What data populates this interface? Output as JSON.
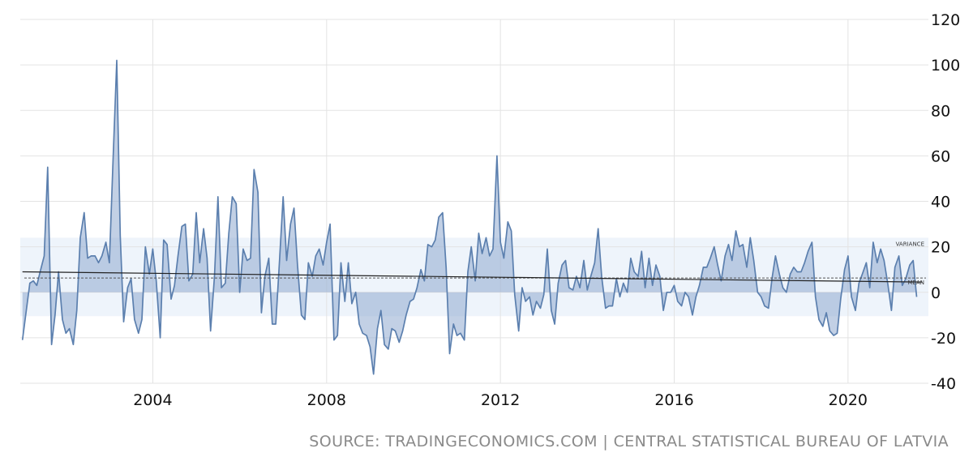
{
  "source_text": "SOURCE: TRADINGECONOMICS.COM | CENTRAL STATISTICAL BUREAU OF LATVIA",
  "colors": {
    "line": "#5b7fae",
    "area_fill": "#8fa9cf",
    "variance_band": "#eef4fb",
    "grid": "#e3e3e3",
    "trend": "#222222",
    "mean": "#555555"
  },
  "chart_data": {
    "type": "area",
    "title": "",
    "xlabel": "",
    "ylabel": "",
    "xlim": [
      2000.95,
      2021.85
    ],
    "ylim": [
      -40,
      120
    ],
    "y_ticks": [
      -40,
      -20,
      0,
      20,
      40,
      60,
      80,
      100,
      120
    ],
    "x_ticks": [
      2004,
      2008,
      2012,
      2016,
      2020
    ],
    "grid": true,
    "y_axis_position": "right",
    "variance_band": {
      "label": "VARIANCE",
      "from": -10.5,
      "to": 24
    },
    "mean_line": {
      "label": "MEAN",
      "value": 6.3
    },
    "trend_line": {
      "start": [
        2001.0,
        9.0
      ],
      "end": [
        2021.7,
        4.5
      ]
    },
    "series": [
      {
        "points": [
          [
            2001.0,
            -21
          ],
          [
            2001.17,
            4
          ],
          [
            2001.25,
            5
          ],
          [
            2001.33,
            3
          ],
          [
            2001.42,
            10
          ],
          [
            2001.5,
            16
          ],
          [
            2001.58,
            55
          ],
          [
            2001.67,
            -23
          ],
          [
            2001.75,
            -10
          ],
          [
            2001.83,
            9
          ],
          [
            2001.92,
            -12
          ],
          [
            2002.0,
            -18
          ],
          [
            2002.08,
            -16
          ],
          [
            2002.17,
            -23
          ],
          [
            2002.25,
            -8
          ],
          [
            2002.33,
            24
          ],
          [
            2002.42,
            35
          ],
          [
            2002.5,
            15
          ],
          [
            2002.58,
            16
          ],
          [
            2002.67,
            16
          ],
          [
            2002.75,
            13
          ],
          [
            2002.83,
            16
          ],
          [
            2002.92,
            22
          ],
          [
            2003.0,
            13
          ],
          [
            2003.08,
            55
          ],
          [
            2003.17,
            102
          ],
          [
            2003.25,
            25
          ],
          [
            2003.33,
            -13
          ],
          [
            2003.42,
            2
          ],
          [
            2003.5,
            6
          ],
          [
            2003.58,
            -12
          ],
          [
            2003.67,
            -18
          ],
          [
            2003.75,
            -12
          ],
          [
            2003.83,
            20
          ],
          [
            2003.92,
            8
          ],
          [
            2004.0,
            19
          ],
          [
            2004.08,
            5
          ],
          [
            2004.17,
            -20
          ],
          [
            2004.25,
            23
          ],
          [
            2004.33,
            21
          ],
          [
            2004.42,
            -3
          ],
          [
            2004.5,
            3
          ],
          [
            2004.58,
            16
          ],
          [
            2004.67,
            29
          ],
          [
            2004.75,
            30
          ],
          [
            2004.83,
            5
          ],
          [
            2004.92,
            8
          ],
          [
            2005.0,
            35
          ],
          [
            2005.08,
            13
          ],
          [
            2005.17,
            28
          ],
          [
            2005.25,
            15
          ],
          [
            2005.33,
            -17
          ],
          [
            2005.42,
            7
          ],
          [
            2005.5,
            42
          ],
          [
            2005.58,
            2
          ],
          [
            2005.67,
            4
          ],
          [
            2005.75,
            26
          ],
          [
            2005.83,
            42
          ],
          [
            2005.92,
            39
          ],
          [
            2006.0,
            0
          ],
          [
            2006.08,
            19
          ],
          [
            2006.17,
            14
          ],
          [
            2006.25,
            15
          ],
          [
            2006.33,
            54
          ],
          [
            2006.42,
            44
          ],
          [
            2006.5,
            -9
          ],
          [
            2006.58,
            7
          ],
          [
            2006.67,
            15
          ],
          [
            2006.75,
            -14
          ],
          [
            2006.83,
            -14
          ],
          [
            2006.92,
            15
          ],
          [
            2007.0,
            42
          ],
          [
            2007.08,
            14
          ],
          [
            2007.17,
            30
          ],
          [
            2007.25,
            37
          ],
          [
            2007.33,
            12
          ],
          [
            2007.42,
            -10
          ],
          [
            2007.5,
            -12
          ],
          [
            2007.58,
            13
          ],
          [
            2007.67,
            7
          ],
          [
            2007.75,
            16
          ],
          [
            2007.83,
            19
          ],
          [
            2007.92,
            12
          ],
          [
            2008.0,
            22
          ],
          [
            2008.08,
            30
          ],
          [
            2008.17,
            -21
          ],
          [
            2008.25,
            -19
          ],
          [
            2008.33,
            13
          ],
          [
            2008.42,
            -4
          ],
          [
            2008.5,
            13
          ],
          [
            2008.58,
            -5
          ],
          [
            2008.67,
            0
          ],
          [
            2008.75,
            -14
          ],
          [
            2008.83,
            -18
          ],
          [
            2008.92,
            -19
          ],
          [
            2009.0,
            -24
          ],
          [
            2009.08,
            -36
          ],
          [
            2009.17,
            -16
          ],
          [
            2009.25,
            -8
          ],
          [
            2009.33,
            -23
          ],
          [
            2009.42,
            -25
          ],
          [
            2009.5,
            -16
          ],
          [
            2009.58,
            -17
          ],
          [
            2009.67,
            -22
          ],
          [
            2009.75,
            -17
          ],
          [
            2009.83,
            -10
          ],
          [
            2009.92,
            -4
          ],
          [
            2010.0,
            -3
          ],
          [
            2010.08,
            2
          ],
          [
            2010.17,
            10
          ],
          [
            2010.25,
            5
          ],
          [
            2010.33,
            21
          ],
          [
            2010.42,
            20
          ],
          [
            2010.5,
            23
          ],
          [
            2010.58,
            33
          ],
          [
            2010.67,
            35
          ],
          [
            2010.75,
            11
          ],
          [
            2010.83,
            -27
          ],
          [
            2010.92,
            -14
          ],
          [
            2011.0,
            -19
          ],
          [
            2011.08,
            -18
          ],
          [
            2011.17,
            -21
          ],
          [
            2011.25,
            9
          ],
          [
            2011.33,
            20
          ],
          [
            2011.42,
            5
          ],
          [
            2011.5,
            26
          ],
          [
            2011.58,
            17
          ],
          [
            2011.67,
            24
          ],
          [
            2011.75,
            16
          ],
          [
            2011.83,
            19
          ],
          [
            2011.92,
            60
          ],
          [
            2012.0,
            22
          ],
          [
            2012.08,
            15
          ],
          [
            2012.17,
            31
          ],
          [
            2012.25,
            27
          ],
          [
            2012.33,
            -1
          ],
          [
            2012.42,
            -17
          ],
          [
            2012.5,
            2
          ],
          [
            2012.58,
            -4
          ],
          [
            2012.67,
            -2
          ],
          [
            2012.75,
            -10
          ],
          [
            2012.83,
            -4
          ],
          [
            2012.92,
            -7
          ],
          [
            2013.0,
            -1
          ],
          [
            2013.08,
            19
          ],
          [
            2013.17,
            -8
          ],
          [
            2013.25,
            -14
          ],
          [
            2013.33,
            4
          ],
          [
            2013.42,
            12
          ],
          [
            2013.5,
            14
          ],
          [
            2013.58,
            2
          ],
          [
            2013.67,
            1
          ],
          [
            2013.75,
            7
          ],
          [
            2013.83,
            2
          ],
          [
            2013.92,
            14
          ],
          [
            2014.0,
            1
          ],
          [
            2014.08,
            7
          ],
          [
            2014.17,
            13
          ],
          [
            2014.25,
            28
          ],
          [
            2014.33,
            7
          ],
          [
            2014.42,
            -7
          ],
          [
            2014.5,
            -6
          ],
          [
            2014.58,
            -6
          ],
          [
            2014.67,
            6
          ],
          [
            2014.75,
            -2
          ],
          [
            2014.83,
            4
          ],
          [
            2014.92,
            0
          ],
          [
            2015.0,
            15
          ],
          [
            2015.08,
            9
          ],
          [
            2015.17,
            7
          ],
          [
            2015.25,
            18
          ],
          [
            2015.33,
            2
          ],
          [
            2015.42,
            15
          ],
          [
            2015.5,
            3
          ],
          [
            2015.58,
            12
          ],
          [
            2015.67,
            7
          ],
          [
            2015.75,
            -8
          ],
          [
            2015.83,
            0
          ],
          [
            2015.92,
            0
          ],
          [
            2016.0,
            3
          ],
          [
            2016.08,
            -4
          ],
          [
            2016.17,
            -6
          ],
          [
            2016.25,
            0
          ],
          [
            2016.33,
            -2
          ],
          [
            2016.42,
            -10
          ],
          [
            2016.5,
            -2
          ],
          [
            2016.58,
            3
          ],
          [
            2016.67,
            11
          ],
          [
            2016.75,
            11
          ],
          [
            2016.83,
            15
          ],
          [
            2016.92,
            20
          ],
          [
            2017.0,
            12
          ],
          [
            2017.08,
            5
          ],
          [
            2017.17,
            16
          ],
          [
            2017.25,
            21
          ],
          [
            2017.33,
            14
          ],
          [
            2017.42,
            27
          ],
          [
            2017.5,
            20
          ],
          [
            2017.58,
            21
          ],
          [
            2017.67,
            11
          ],
          [
            2017.75,
            24
          ],
          [
            2017.83,
            14
          ],
          [
            2017.92,
            0
          ],
          [
            2018.0,
            -2
          ],
          [
            2018.08,
            -6
          ],
          [
            2018.17,
            -7
          ],
          [
            2018.25,
            6
          ],
          [
            2018.33,
            16
          ],
          [
            2018.42,
            8
          ],
          [
            2018.5,
            2
          ],
          [
            2018.58,
            0
          ],
          [
            2018.67,
            8
          ],
          [
            2018.75,
            11
          ],
          [
            2018.83,
            9
          ],
          [
            2018.92,
            9
          ],
          [
            2019.0,
            13
          ],
          [
            2019.08,
            18
          ],
          [
            2019.17,
            22
          ],
          [
            2019.25,
            -2
          ],
          [
            2019.33,
            -12
          ],
          [
            2019.42,
            -15
          ],
          [
            2019.5,
            -9
          ],
          [
            2019.58,
            -17
          ],
          [
            2019.67,
            -19
          ],
          [
            2019.75,
            -18
          ],
          [
            2019.83,
            -3
          ],
          [
            2019.92,
            10
          ],
          [
            2020.0,
            16
          ],
          [
            2020.08,
            -2
          ],
          [
            2020.17,
            -8
          ],
          [
            2020.25,
            4
          ],
          [
            2020.33,
            8
          ],
          [
            2020.42,
            13
          ],
          [
            2020.5,
            2
          ],
          [
            2020.58,
            22
          ],
          [
            2020.67,
            13
          ],
          [
            2020.75,
            19
          ],
          [
            2020.83,
            14
          ],
          [
            2020.92,
            3
          ],
          [
            2021.0,
            -8
          ],
          [
            2021.08,
            11
          ],
          [
            2021.17,
            16
          ],
          [
            2021.25,
            3
          ],
          [
            2021.33,
            6
          ],
          [
            2021.42,
            12
          ],
          [
            2021.5,
            14
          ],
          [
            2021.58,
            -2
          ]
        ]
      }
    ]
  }
}
